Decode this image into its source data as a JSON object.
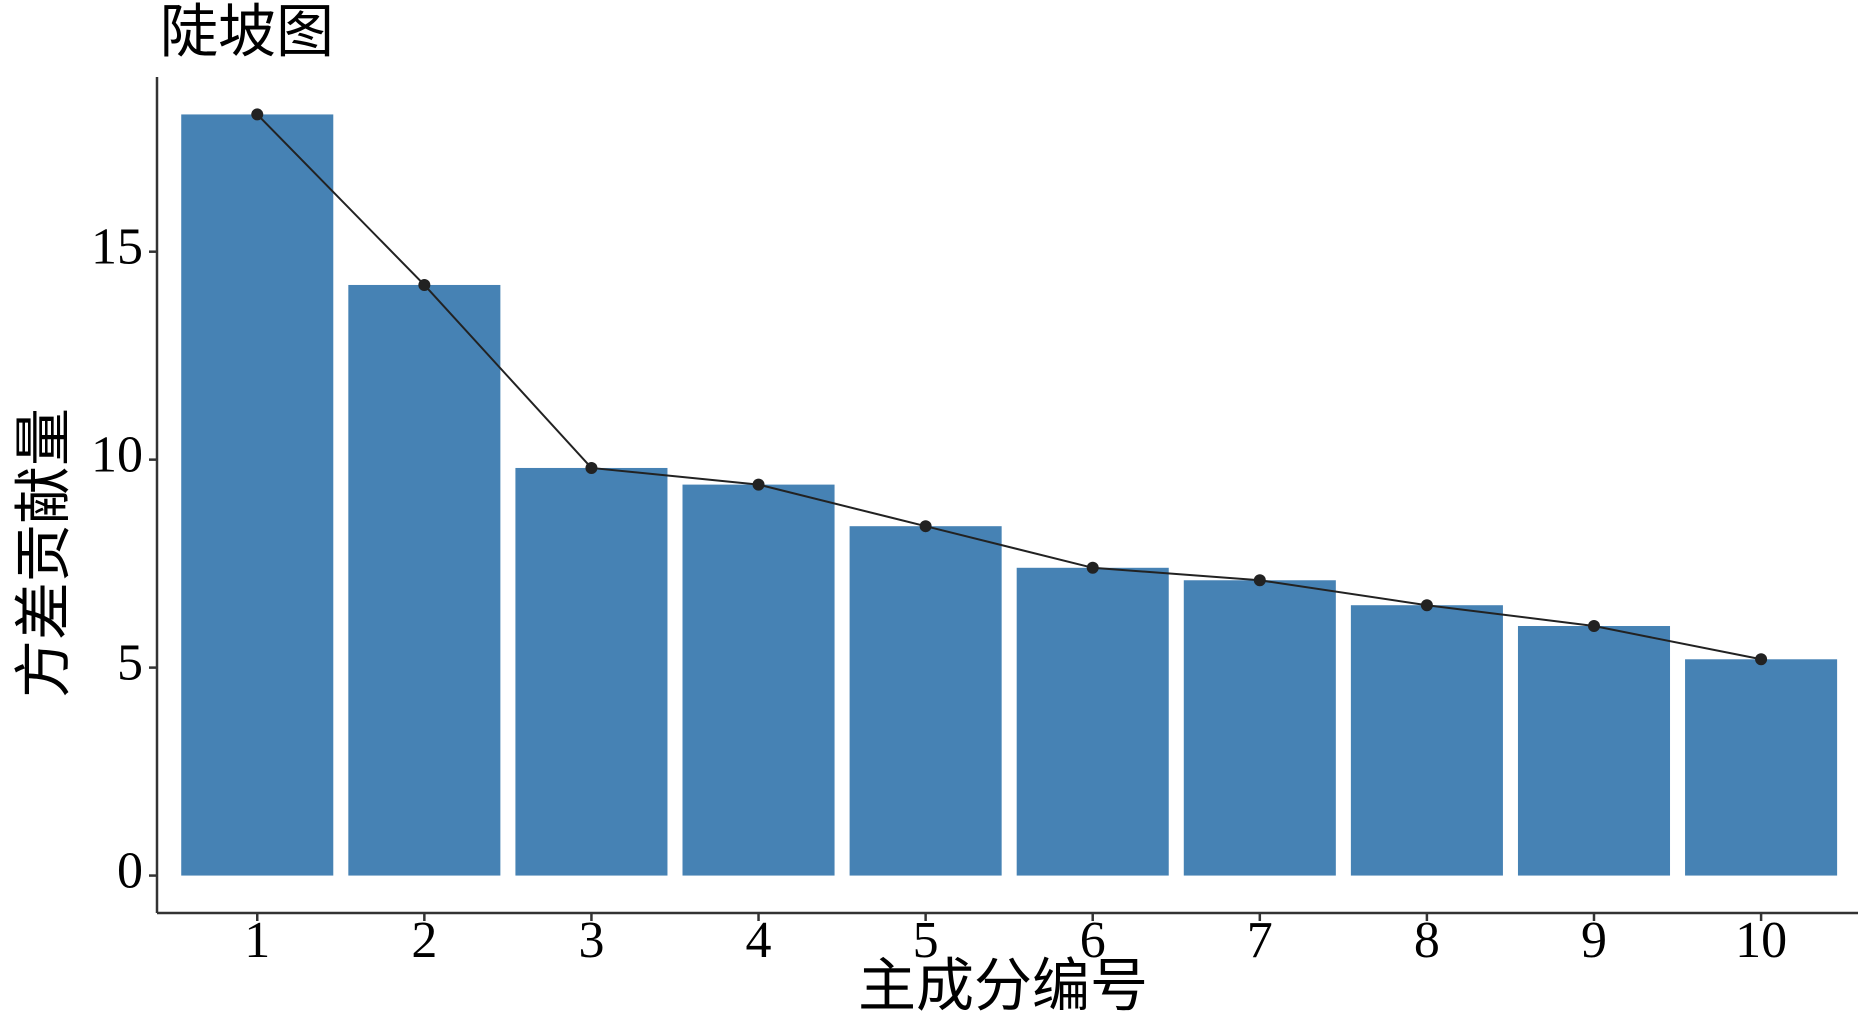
{
  "chart_data": {
    "type": "bar",
    "title": "陡坡图",
    "xlabel": "主成分编号",
    "ylabel": "方差贡献量",
    "categories": [
      "1",
      "2",
      "3",
      "4",
      "5",
      "6",
      "7",
      "8",
      "9",
      "10"
    ],
    "values": [
      18.3,
      14.2,
      9.8,
      9.4,
      8.4,
      7.4,
      7.1,
      6.5,
      6.0,
      5.2
    ],
    "color": "#4682b4",
    "line_color": "#222222",
    "ylim": [
      -0.9,
      19.2
    ],
    "yticks": [
      0,
      5,
      10,
      15
    ]
  }
}
